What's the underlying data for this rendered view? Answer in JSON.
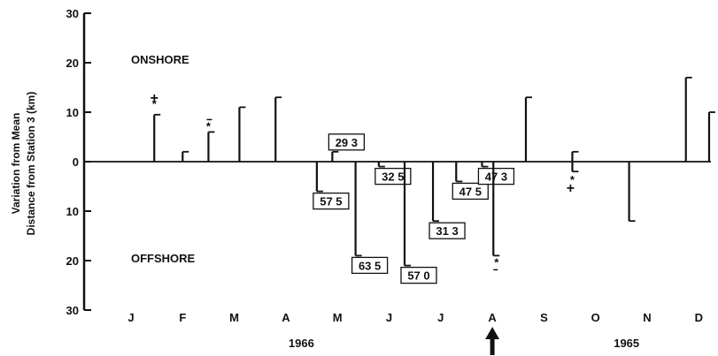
{
  "chart_data": {
    "type": "bar",
    "ylabel_line1": "Variation from Mean",
    "ylabel_line2": "Distance from Station 3 (km)",
    "ylim": [
      -30,
      30
    ],
    "yticks": [
      {
        "value": 30,
        "label": "30"
      },
      {
        "value": 20,
        "label": "20"
      },
      {
        "value": 10,
        "label": "10"
      },
      {
        "value": 0,
        "label": "0"
      },
      {
        "value": -10,
        "label": "10"
      },
      {
        "value": -20,
        "label": "20"
      },
      {
        "value": -30,
        "label": "30"
      }
    ],
    "region_labels": {
      "onshore": "ONSHORE",
      "offshore": "OFFSHORE"
    },
    "months": [
      {
        "label": "J",
        "index": 0
      },
      {
        "label": "F",
        "index": 1
      },
      {
        "label": "M",
        "index": 2
      },
      {
        "label": "A",
        "index": 3
      },
      {
        "label": "M",
        "index": 4
      },
      {
        "label": "J",
        "index": 5
      },
      {
        "label": "J",
        "index": 6
      },
      {
        "label": "A",
        "index": 7
      },
      {
        "label": "S",
        "index": 8
      },
      {
        "label": "O",
        "index": 9
      },
      {
        "label": "N",
        "index": 10
      },
      {
        "label": "D",
        "index": 11
      }
    ],
    "years": [
      {
        "label": "1966",
        "center_month": 3.3
      },
      {
        "label": "1965",
        "center_month": 9.6
      }
    ],
    "bars": [
      {
        "month": 0.45,
        "value": 9.5,
        "marker": "plus-star"
      },
      {
        "month": 1.0,
        "value": 2
      },
      {
        "month": 1.5,
        "value": 6,
        "marker": "dash-star"
      },
      {
        "month": 2.1,
        "value": 11
      },
      {
        "month": 2.8,
        "value": 13
      },
      {
        "month": 3.6,
        "value": -6,
        "box": "57 5"
      },
      {
        "month": 3.9,
        "value": 2,
        "box": "29 3"
      },
      {
        "month": 4.35,
        "value": -19,
        "box": "63 5"
      },
      {
        "month": 4.8,
        "value": -1,
        "box": "32 5"
      },
      {
        "month": 5.3,
        "value": -21,
        "box": "57 0"
      },
      {
        "month": 5.85,
        "value": -12,
        "box": "31 3"
      },
      {
        "month": 6.3,
        "value": -4,
        "box": "47 5"
      },
      {
        "month": 6.8,
        "value": -1,
        "box": "47 3"
      },
      {
        "month": 7.02,
        "value": -19,
        "marker": "dash-star"
      },
      {
        "month": 7.65,
        "value": 13
      },
      {
        "month": 8.55,
        "value": 2
      },
      {
        "month": 8.55,
        "value": -2,
        "marker": "star-plus"
      },
      {
        "month": 9.65,
        "value": -12
      },
      {
        "month": 10.75,
        "value": 17
      },
      {
        "month": 11.2,
        "value": 10
      }
    ],
    "arrow_month": 7.0
  }
}
